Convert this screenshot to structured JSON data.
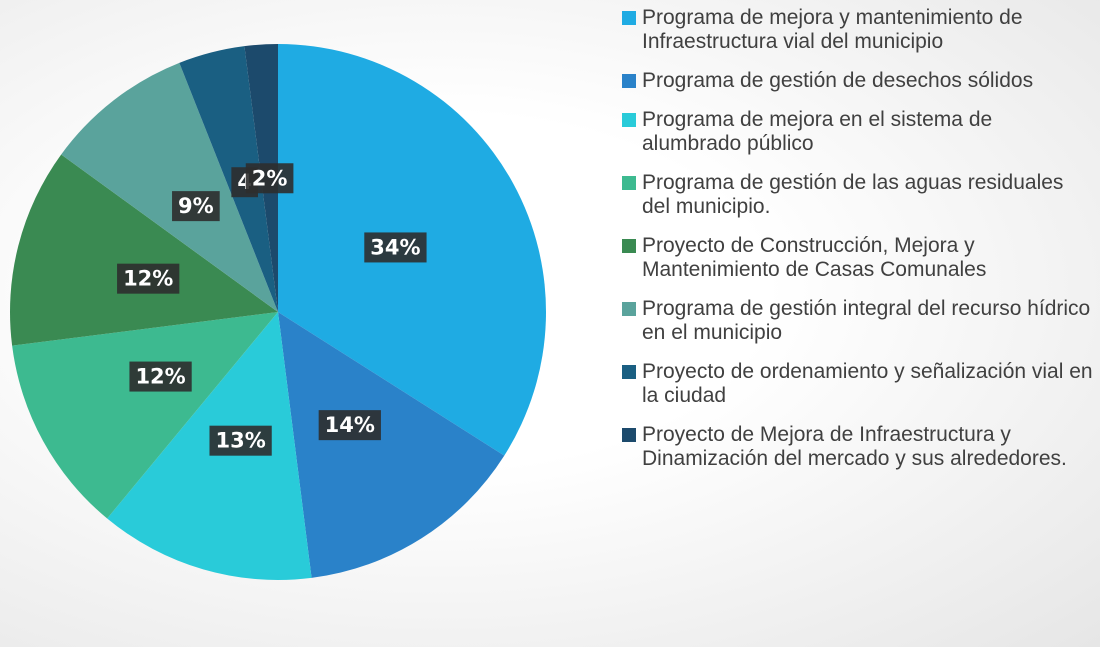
{
  "chart_data": {
    "type": "pie",
    "categories": [
      "Programa de mejora y mantenimiento de Infraestructura vial del municipio",
      "Programa de gestión de desechos sólidos",
      "Programa de mejora en el sistema de alumbrado público",
      "Programa de gestión de las aguas residuales del municipio.",
      "Proyecto de Construcción, Mejora y Mantenimiento de Casas Comunales",
      "Programa de gestión integral del recurso hídrico en el municipio",
      "Proyecto de ordenamiento y señalización vial en la ciudad",
      "Proyecto de Mejora de Infraestructura y Dinamización del mercado y sus alrededores."
    ],
    "values": [
      34,
      14,
      13,
      12,
      12,
      9,
      4,
      2
    ],
    "value_labels": [
      "34%",
      "14%",
      "13%",
      "12%",
      "12%",
      "9%",
      "4",
      "2%"
    ],
    "colors": [
      "#1fabe3",
      "#2a82c9",
      "#29cbd9",
      "#3dba90",
      "#3a8a52",
      "#5aa39c",
      "#1a5f82",
      "#1c4a6c"
    ],
    "legend": "right"
  }
}
